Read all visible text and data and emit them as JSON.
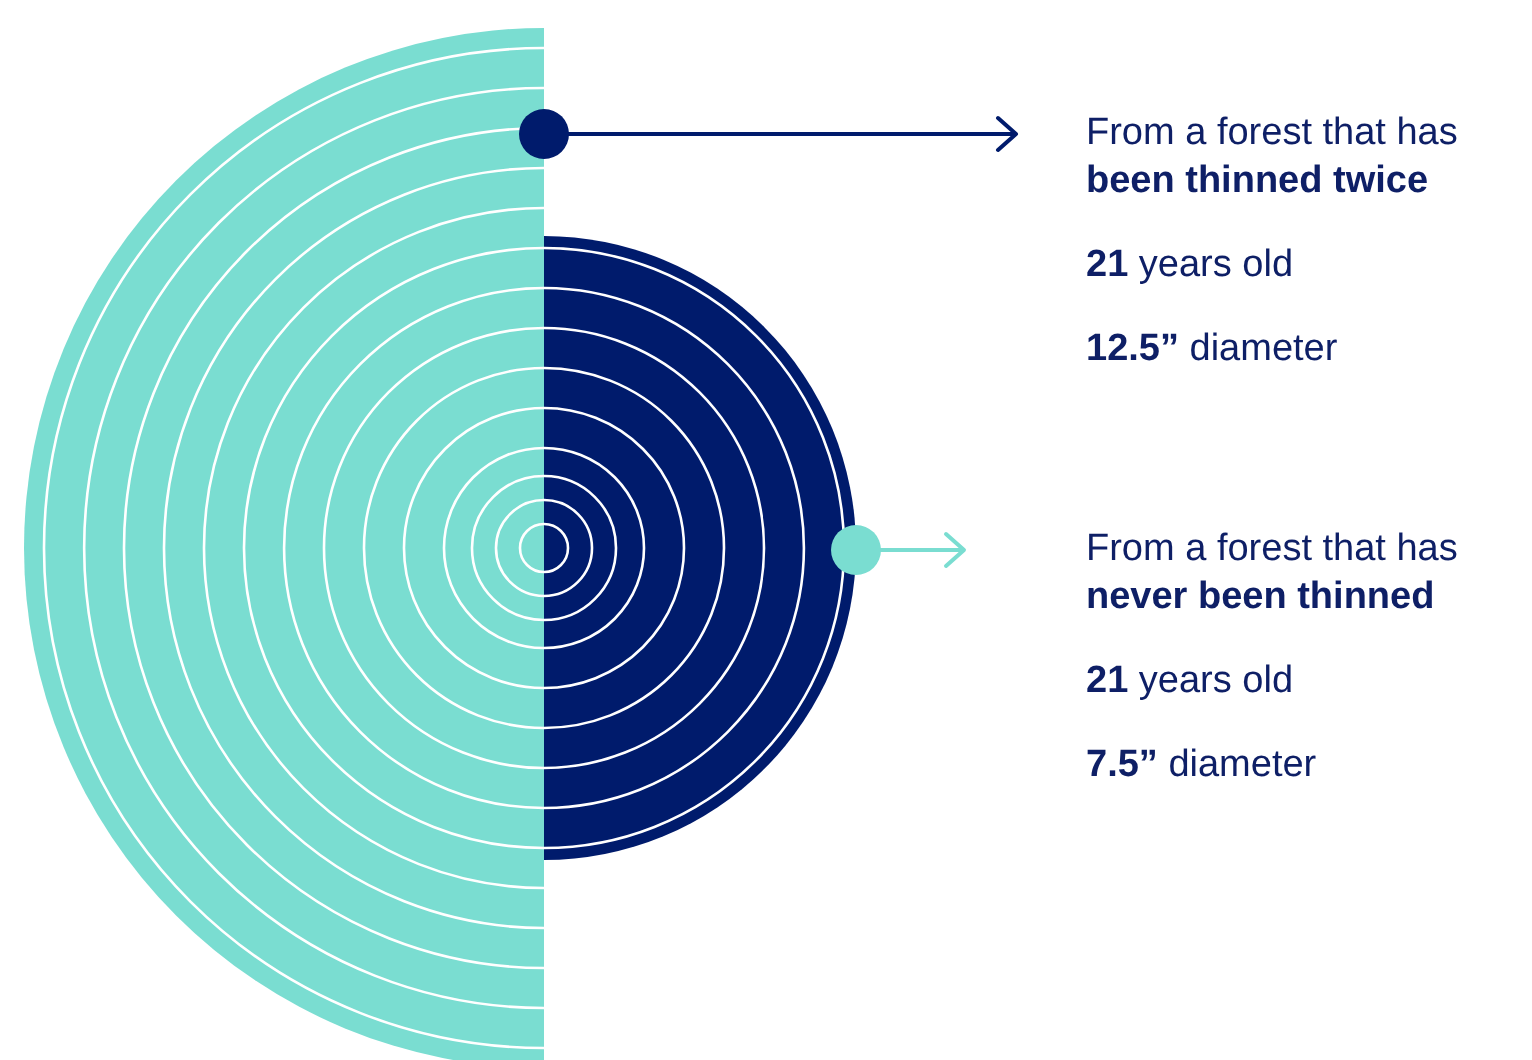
{
  "chart_data": {
    "type": "other",
    "categories": [
      "been thinned twice",
      "never been thinned"
    ],
    "values": [
      12.5,
      7.5
    ],
    "colors": [
      "#7addd1",
      "#001b6c"
    ],
    "value_labels": [
      "12.5” diameter",
      "7.5” diameter"
    ],
    "annotations": [
      "From a forest that has",
      "21 years old",
      "From a forest that has",
      "21 years old"
    ]
  }
}
